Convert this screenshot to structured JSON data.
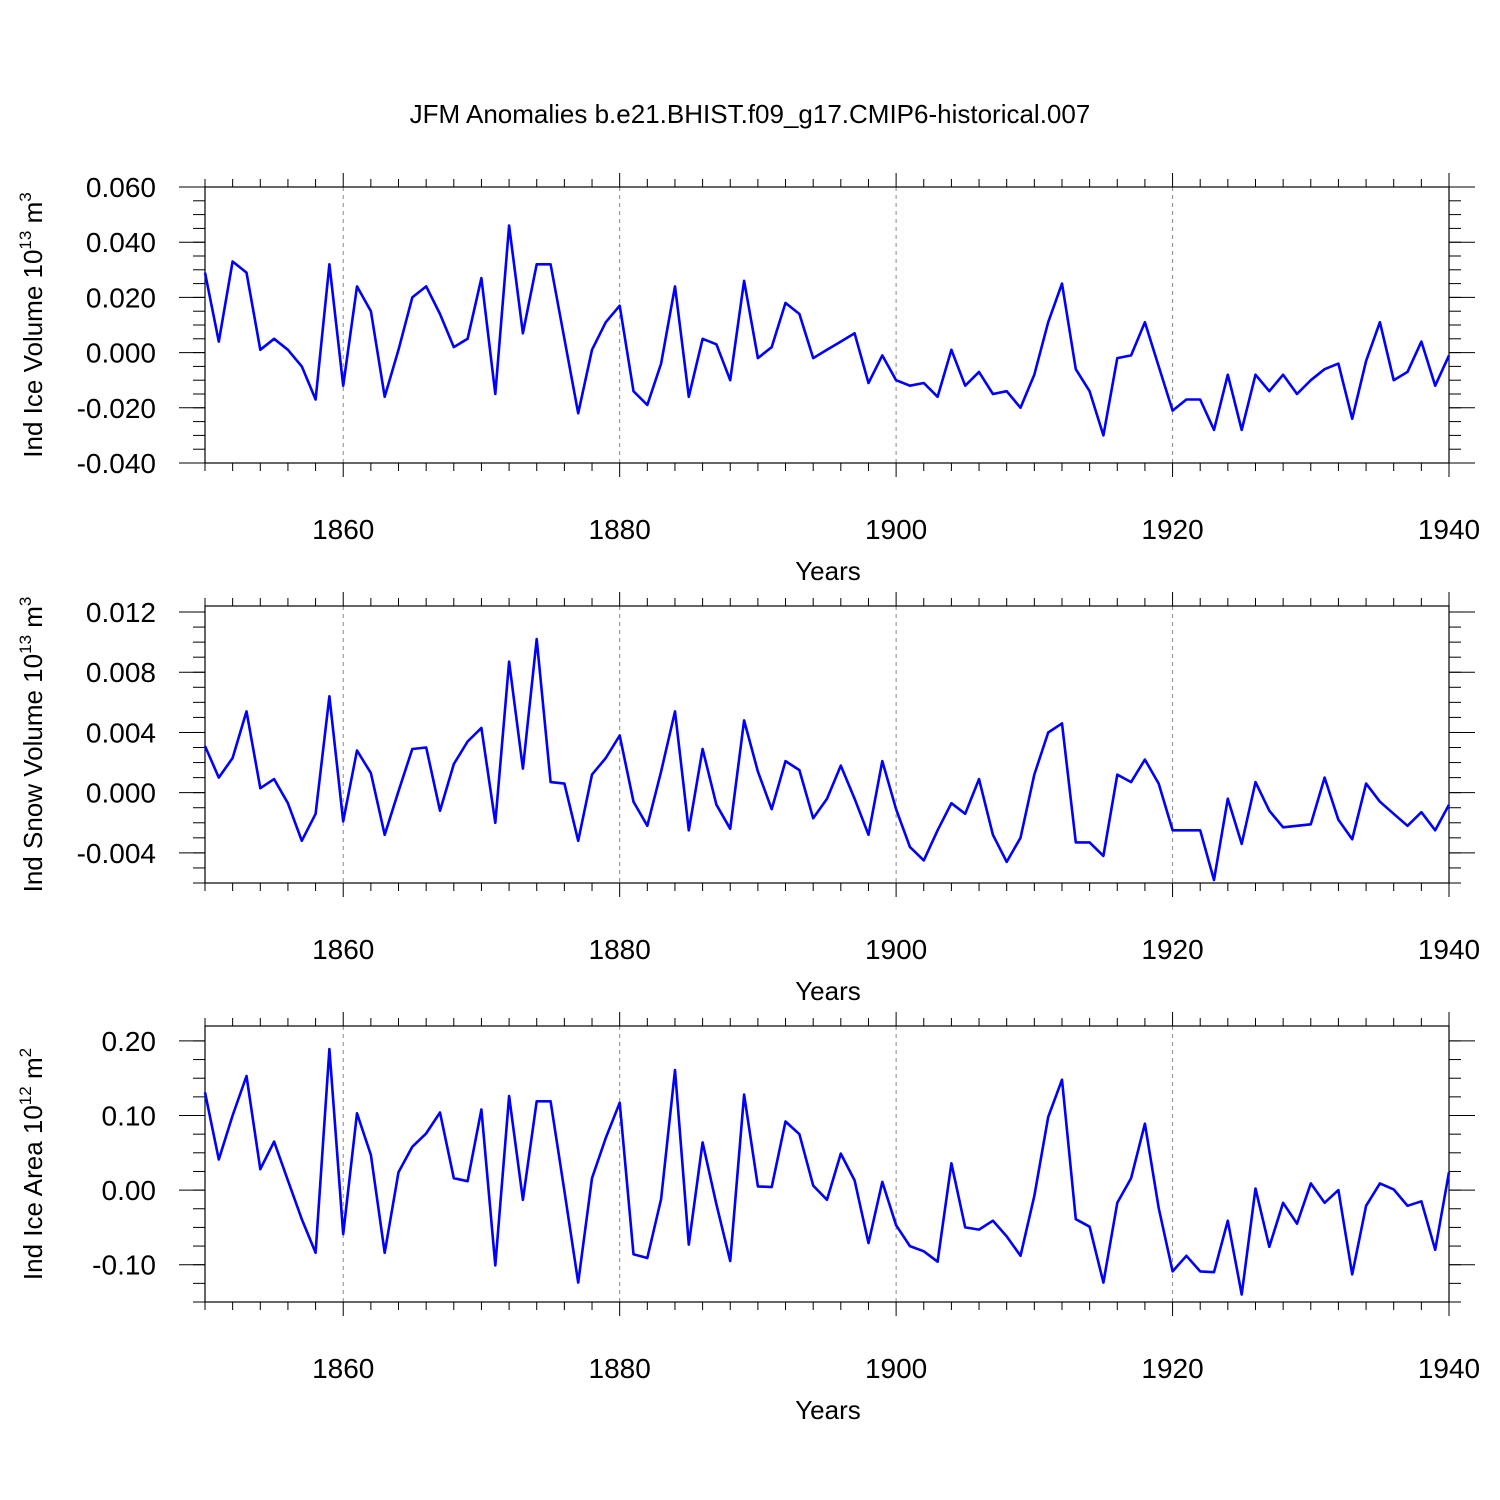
{
  "title": "JFM Anomalies b.e21.BHIST.f09_g17.CMIP6-historical.007",
  "line_color": "#0000ff",
  "chart_data": [
    {
      "type": "line",
      "ylabel": {
        "main": "Ind Ice Volume 10",
        "sup": "13",
        "unit": " m",
        "unit_sup": "3"
      },
      "xlabel": "Years",
      "xlim": [
        1850,
        1940
      ],
      "ylim": [
        -0.04,
        0.06
      ],
      "yticks": [
        -0.04,
        -0.02,
        0.0,
        0.02,
        0.04,
        0.06
      ],
      "ytick_labels": [
        "-0.040",
        "-0.020",
        "0.000",
        "0.020",
        "0.040",
        "0.060"
      ],
      "xticks": [
        1860,
        1880,
        1900,
        1920,
        1940
      ],
      "xtick_labels": [
        "1860",
        "1880",
        "1900",
        "1920",
        "1940"
      ],
      "grid_x": [
        1860,
        1880,
        1900,
        1920
      ],
      "start_year": 1850,
      "values": [
        0.029,
        0.004,
        0.033,
        0.029,
        0.001,
        0.005,
        0.001,
        -0.005,
        -0.017,
        0.032,
        -0.012,
        0.024,
        0.015,
        -0.016,
        0.001,
        0.02,
        0.024,
        0.014,
        0.002,
        0.005,
        0.027,
        -0.015,
        0.046,
        0.007,
        0.032,
        0.032,
        0.005,
        -0.022,
        0.001,
        0.011,
        0.017,
        -0.014,
        -0.019,
        -0.004,
        0.024,
        -0.016,
        0.005,
        0.003,
        -0.01,
        0.026,
        -0.002,
        0.002,
        0.018,
        0.014,
        -0.002,
        0.001,
        0.004,
        0.007,
        -0.011,
        -0.001,
        -0.01,
        -0.012,
        -0.011,
        -0.016,
        0.001,
        -0.012,
        -0.007,
        -0.015,
        -0.014,
        -0.02,
        -0.008,
        0.011,
        0.025,
        -0.006,
        -0.014,
        -0.03,
        -0.002,
        -0.001,
        0.011,
        -0.005,
        -0.021,
        -0.017,
        -0.017,
        -0.028,
        -0.008,
        -0.028,
        -0.008,
        -0.014,
        -0.008,
        -0.015,
        -0.01,
        -0.006,
        -0.004,
        -0.024,
        -0.003,
        0.011,
        -0.01,
        -0.007,
        0.004,
        -0.012,
        -0.001
      ]
    },
    {
      "type": "line",
      "ylabel": {
        "main": "Ind Snow Volume 10",
        "sup": "13",
        "unit": " m",
        "unit_sup": "3"
      },
      "xlabel": "Years",
      "xlim": [
        1850,
        1940
      ],
      "ylim": [
        -0.006,
        0.0124
      ],
      "yticks": [
        -0.004,
        0.0,
        0.004,
        0.008,
        0.012
      ],
      "ytick_labels": [
        "-0.004",
        "0.000",
        "0.004",
        "0.008",
        "0.012"
      ],
      "xticks": [
        1860,
        1880,
        1900,
        1920,
        1940
      ],
      "xtick_labels": [
        "1860",
        "1880",
        "1900",
        "1920",
        "1940"
      ],
      "grid_x": [
        1860,
        1880,
        1900,
        1920
      ],
      "start_year": 1850,
      "values": [
        0.0031,
        0.001,
        0.0023,
        0.0054,
        0.0003,
        0.0009,
        -0.0007,
        -0.0032,
        -0.0014,
        0.0064,
        -0.0019,
        0.0028,
        0.0013,
        -0.0028,
        0.0001,
        0.0029,
        0.003,
        -0.0012,
        0.0019,
        0.0034,
        0.0043,
        -0.002,
        0.0087,
        0.0016,
        0.0102,
        0.0007,
        0.0006,
        -0.0032,
        0.0012,
        0.0023,
        0.0038,
        -0.0006,
        -0.0022,
        0.0014,
        0.0054,
        -0.0025,
        0.0029,
        -0.0008,
        -0.0024,
        0.0048,
        0.0014,
        -0.0011,
        0.0021,
        0.0015,
        -0.0017,
        -0.0004,
        0.0018,
        -0.0004,
        -0.0028,
        0.0021,
        -0.0011,
        -0.0036,
        -0.0045,
        -0.0025,
        -0.0007,
        -0.0014,
        0.0009,
        -0.0028,
        -0.0046,
        -0.003,
        0.0012,
        0.004,
        0.0046,
        -0.0033,
        -0.0033,
        -0.0042,
        0.0012,
        0.0007,
        0.0022,
        0.0006,
        -0.0025,
        -0.0025,
        -0.0025,
        -0.0058,
        -0.0004,
        -0.0034,
        0.0007,
        -0.0012,
        -0.0023,
        -0.0022,
        -0.0021,
        0.001,
        -0.0018,
        -0.0031,
        0.0006,
        -0.0006,
        -0.0014,
        -0.0022,
        -0.0013,
        -0.0025,
        -0.0008
      ]
    },
    {
      "type": "line",
      "ylabel": {
        "main": "Ind Ice Area 10",
        "sup": "12",
        "unit": " m",
        "unit_sup": "2"
      },
      "xlabel": "Years",
      "xlim": [
        1850,
        1940
      ],
      "ylim": [
        -0.15,
        0.22
      ],
      "yticks": [
        -0.1,
        0.0,
        0.1,
        0.2
      ],
      "ytick_labels": [
        "-0.10",
        "0.00",
        "0.10",
        "0.20"
      ],
      "xticks": [
        1860,
        1880,
        1900,
        1920,
        1940
      ],
      "xtick_labels": [
        "1860",
        "1880",
        "1900",
        "1920",
        "1940"
      ],
      "grid_x": [
        1860,
        1880,
        1900,
        1920
      ],
      "start_year": 1850,
      "values": [
        0.131,
        0.041,
        0.1,
        0.153,
        0.028,
        0.065,
        0.013,
        -0.039,
        -0.084,
        0.189,
        -0.059,
        0.103,
        0.047,
        -0.084,
        0.024,
        0.058,
        0.076,
        0.104,
        0.016,
        0.012,
        0.108,
        -0.101,
        0.126,
        -0.013,
        0.119,
        0.119,
        -0.001,
        -0.124,
        0.016,
        0.07,
        0.117,
        -0.086,
        -0.091,
        -0.012,
        0.161,
        -0.073,
        0.064,
        -0.019,
        -0.095,
        0.128,
        0.005,
        0.004,
        0.092,
        0.075,
        0.006,
        -0.013,
        0.049,
        0.013,
        -0.071,
        0.011,
        -0.047,
        -0.075,
        -0.082,
        -0.096,
        0.036,
        -0.05,
        -0.053,
        -0.041,
        -0.062,
        -0.088,
        -0.008,
        0.098,
        0.148,
        -0.039,
        -0.049,
        -0.124,
        -0.017,
        0.016,
        0.089,
        -0.024,
        -0.109,
        -0.088,
        -0.109,
        -0.11,
        -0.041,
        -0.14,
        0.002,
        -0.076,
        -0.017,
        -0.045,
        0.009,
        -0.017,
        0.0,
        -0.113,
        -0.021,
        0.009,
        0.001,
        -0.021,
        -0.015,
        -0.08,
        0.024
      ]
    }
  ]
}
